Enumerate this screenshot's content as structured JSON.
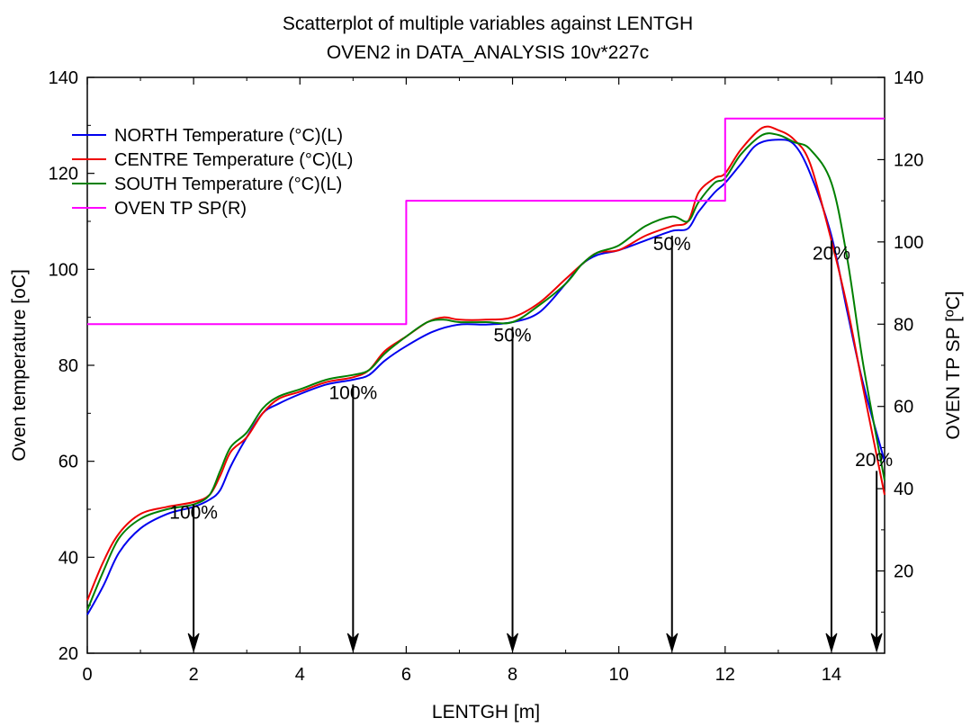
{
  "chart_data": {
    "type": "line",
    "title": "Scatterplot of multiple variables against LENTGH",
    "subtitle": "OVEN2 in DATA_ANALYSIS 10v*227c",
    "xlabel": "LENTGH [m]",
    "ylabel": "Oven temperature [oC]",
    "y2label": "OVEN TP SP [ºC]",
    "xlim": [
      0,
      15
    ],
    "ylim": [
      20,
      140
    ],
    "y2lim": [
      0,
      140
    ],
    "xticks": [
      0,
      2,
      4,
      6,
      8,
      10,
      12,
      14
    ],
    "yticks": [
      20,
      40,
      60,
      80,
      100,
      120,
      140
    ],
    "y2ticks": [
      20,
      40,
      60,
      80,
      100,
      120,
      140
    ],
    "legend_position": "top-left",
    "grid": false,
    "series": [
      {
        "name": "NORTH Temperature (°C)(L)",
        "color": "#0000ee",
        "axis": "left",
        "x": [
          0,
          0.3,
          0.6,
          1.0,
          1.5,
          2.0,
          2.3,
          2.5,
          2.7,
          3.0,
          3.3,
          3.6,
          4.0,
          4.5,
          5.0,
          5.3,
          5.6,
          6.0,
          6.5,
          7.0,
          7.5,
          8.0,
          8.5,
          9.0,
          9.3,
          9.6,
          10.0,
          10.5,
          11.0,
          11.3,
          11.5,
          11.8,
          12.0,
          12.3,
          12.6,
          13.0,
          13.3,
          13.6,
          14.0,
          14.3,
          14.6,
          15.0
        ],
        "y": [
          28,
          34,
          41,
          46,
          49,
          50.5,
          52,
          54,
          59,
          65,
          70,
          72,
          74,
          76,
          77,
          78,
          81,
          84,
          87,
          88.5,
          88.5,
          89,
          91,
          97,
          101,
          103,
          104,
          106,
          108,
          108.5,
          112,
          116,
          118,
          122,
          126,
          127,
          126,
          120,
          107,
          91,
          76,
          60
        ]
      },
      {
        "name": "CENTRE Temperature (°C)(L)",
        "color": "#ee0000",
        "axis": "left",
        "x": [
          0,
          0.3,
          0.6,
          1.0,
          1.5,
          2.0,
          2.3,
          2.5,
          2.7,
          3.0,
          3.3,
          3.6,
          4.0,
          4.5,
          5.0,
          5.3,
          5.6,
          6.0,
          6.4,
          6.7,
          7.0,
          7.5,
          8.0,
          8.5,
          9.0,
          9.3,
          9.6,
          10.0,
          10.5,
          11.0,
          11.3,
          11.5,
          11.8,
          12.0,
          12.3,
          12.7,
          13.0,
          13.3,
          13.6,
          14.0,
          14.3,
          14.6,
          15.0
        ],
        "y": [
          31,
          39,
          45,
          49,
          50.5,
          51.5,
          53,
          57,
          62,
          65,
          70,
          73,
          74.5,
          76.5,
          77.5,
          79,
          83,
          86,
          89,
          90,
          89.5,
          89.5,
          90,
          93,
          98,
          101,
          103.5,
          104,
          107,
          109,
          110,
          116,
          119,
          120,
          125,
          129.5,
          129,
          127,
          122,
          106,
          92,
          75,
          53
        ]
      },
      {
        "name": "SOUTH Temperature (°C)(L)",
        "color": "#008000",
        "axis": "left",
        "x": [
          0,
          0.3,
          0.6,
          1.0,
          1.5,
          2.0,
          2.3,
          2.5,
          2.7,
          3.0,
          3.3,
          3.6,
          4.0,
          4.5,
          5.0,
          5.3,
          5.6,
          6.0,
          6.4,
          6.7,
          7.0,
          7.5,
          8.0,
          8.5,
          9.0,
          9.3,
          9.6,
          10.0,
          10.5,
          11.0,
          11.3,
          11.5,
          11.8,
          12.0,
          12.3,
          12.7,
          13.0,
          13.3,
          13.6,
          14.0,
          14.3,
          14.6,
          15.0
        ],
        "y": [
          29,
          37,
          44,
          48,
          50,
          51,
          53,
          58,
          63,
          66,
          71,
          73.5,
          75,
          77,
          78,
          79,
          82.5,
          86,
          89,
          89.5,
          89,
          89,
          89,
          92.5,
          97,
          101,
          103.5,
          105,
          109,
          111,
          110,
          114,
          118,
          119,
          124,
          128,
          128,
          126.5,
          125,
          118,
          102,
          80,
          56
        ]
      },
      {
        "name": "OVEN TP SP(R)",
        "color": "#ff00ff",
        "axis": "right",
        "x": [
          0,
          6.0,
          6.0,
          12.0,
          12.0,
          15.0
        ],
        "y": [
          80,
          80,
          110,
          110,
          130,
          130
        ]
      }
    ],
    "annotations": [
      {
        "text": "100%",
        "x": 2.0,
        "y": 48
      },
      {
        "text": "100%",
        "x": 5.0,
        "y": 73
      },
      {
        "text": "50%",
        "x": 8.0,
        "y": 85
      },
      {
        "text": "50%",
        "x": 11.0,
        "y": 104
      },
      {
        "text": "20%",
        "x": 14.0,
        "y": 102
      },
      {
        "text": "20%",
        "x": 14.8,
        "y": 59
      }
    ],
    "arrows": [
      {
        "x": 2.0,
        "from_y": 51,
        "to_y": 20
      },
      {
        "x": 5.0,
        "from_y": 76,
        "to_y": 20
      },
      {
        "x": 8.0,
        "from_y": 88,
        "to_y": 20
      },
      {
        "x": 11.0,
        "from_y": 107,
        "to_y": 20
      },
      {
        "x": 14.0,
        "from_y": 106,
        "to_y": 20
      },
      {
        "x": 14.85,
        "from_y": 58,
        "to_y": 20
      }
    ]
  }
}
